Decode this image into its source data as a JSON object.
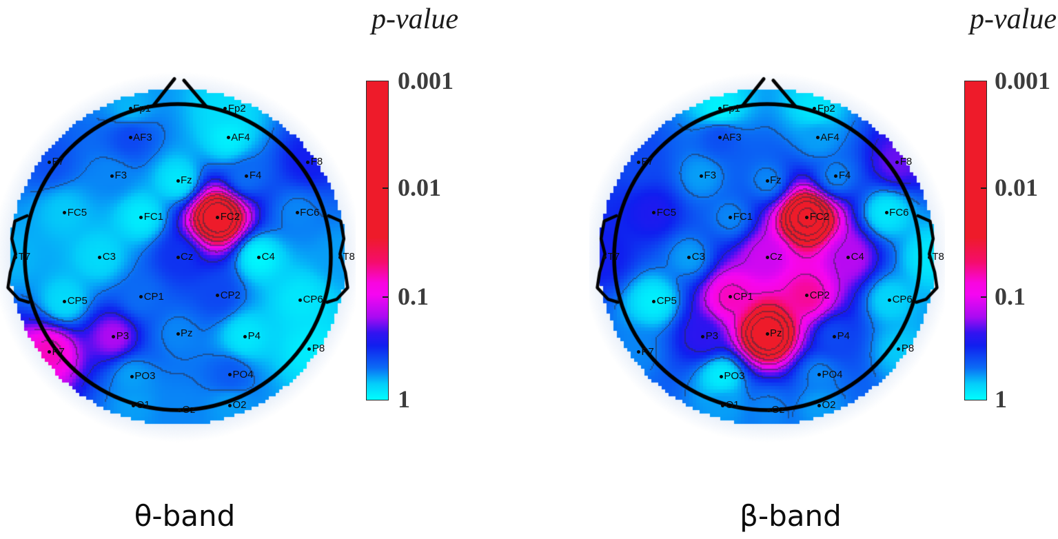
{
  "colormap": {
    "v_range": [
      0,
      3
    ],
    "note": "v = -log10(p); p=1 -> cyan, p=0.001 -> red",
    "stops": [
      {
        "v": 0.0,
        "color": "#00FEFE"
      },
      {
        "v": 0.15,
        "color": "#04CDFA"
      },
      {
        "v": 0.3,
        "color": "#0B6CF5"
      },
      {
        "v": 0.51,
        "color": "#101FEF"
      },
      {
        "v": 0.63,
        "color": "#3313F0"
      },
      {
        "v": 0.78,
        "color": "#A90BF2"
      },
      {
        "v": 0.99,
        "color": "#F506F1"
      },
      {
        "v": 1.1,
        "color": "#F806DF"
      },
      {
        "v": 1.3,
        "color": "#F50D6B"
      },
      {
        "v": 1.53,
        "color": "#EE1B2A"
      },
      {
        "v": 3.0,
        "color": "#EE1B2A"
      }
    ],
    "contour_color": "#2b2b40",
    "head_outline_color": "#000000",
    "halo_color": "#E8EFF9"
  },
  "chart_data": [
    {
      "type": "heatmap",
      "subtype": "eeg-scalp-topomap",
      "title": "θ-band",
      "colorbar": {
        "title": "p-value",
        "scale": "log10",
        "range": [
          0.001,
          1
        ],
        "tick_labels": [
          "0.001",
          "0.01",
          "0.1",
          "1"
        ]
      },
      "electrodes": [
        {
          "label": "Fp1",
          "x": -0.31,
          "y": 0.97,
          "p": 0.65
        },
        {
          "label": "Fp2",
          "x": 0.31,
          "y": 0.97,
          "p": 0.8
        },
        {
          "label": "AF3",
          "x": -0.31,
          "y": 0.78,
          "p": 0.4
        },
        {
          "label": "AF4",
          "x": 0.33,
          "y": 0.78,
          "p": 0.9
        },
        {
          "label": "F7",
          "x": -0.84,
          "y": 0.62,
          "p": 0.42
        },
        {
          "label": "F3",
          "x": -0.43,
          "y": 0.53,
          "p": 0.55
        },
        {
          "label": "Fz",
          "x": 0.0,
          "y": 0.5,
          "p": 0.85
        },
        {
          "label": "F4",
          "x": 0.45,
          "y": 0.53,
          "p": 0.5
        },
        {
          "label": "F8",
          "x": 0.85,
          "y": 0.62,
          "p": 0.3
        },
        {
          "label": "FC5",
          "x": -0.74,
          "y": 0.29,
          "p": 0.7
        },
        {
          "label": "FC1",
          "x": -0.24,
          "y": 0.26,
          "p": 0.88
        },
        {
          "label": "FC2",
          "x": 0.26,
          "y": 0.26,
          "p": 0.006
        },
        {
          "label": "FC6",
          "x": 0.78,
          "y": 0.29,
          "p": 0.55
        },
        {
          "label": "T7",
          "x": -1.06,
          "y": 0.0,
          "p": 0.65
        },
        {
          "label": "C3",
          "x": -0.51,
          "y": 0.0,
          "p": 0.78
        },
        {
          "label": "Cz",
          "x": 0.0,
          "y": 0.0,
          "p": 0.35
        },
        {
          "label": "C4",
          "x": 0.53,
          "y": 0.0,
          "p": 0.95
        },
        {
          "label": "T8",
          "x": 1.06,
          "y": 0.0,
          "p": 0.6
        },
        {
          "label": "CP5",
          "x": -0.74,
          "y": -0.29,
          "p": 0.78
        },
        {
          "label": "CP1",
          "x": -0.24,
          "y": -0.26,
          "p": 0.5
        },
        {
          "label": "CP2",
          "x": 0.26,
          "y": -0.25,
          "p": 0.4
        },
        {
          "label": "CP6",
          "x": 0.8,
          "y": -0.28,
          "p": 0.85
        },
        {
          "label": "P7",
          "x": -0.84,
          "y": -0.62,
          "p": 0.07
        },
        {
          "label": "P3",
          "x": -0.42,
          "y": -0.52,
          "p": 0.16
        },
        {
          "label": "Pz",
          "x": 0.0,
          "y": -0.5,
          "p": 0.55
        },
        {
          "label": "P4",
          "x": 0.44,
          "y": -0.52,
          "p": 0.85
        },
        {
          "label": "P8",
          "x": 0.86,
          "y": -0.6,
          "p": 0.88
        },
        {
          "label": "PO3",
          "x": -0.3,
          "y": -0.78,
          "p": 0.6
        },
        {
          "label": "PO4",
          "x": 0.34,
          "y": -0.77,
          "p": 0.45
        },
        {
          "label": "O1",
          "x": -0.29,
          "y": -0.97,
          "p": 0.6
        },
        {
          "label": "Oz",
          "x": 0.01,
          "y": -1.0,
          "p": 0.55
        },
        {
          "label": "O2",
          "x": 0.34,
          "y": -0.97,
          "p": 0.6
        }
      ]
    },
    {
      "type": "heatmap",
      "subtype": "eeg-scalp-topomap",
      "title": "β-band",
      "colorbar": {
        "title": "p-value",
        "scale": "log10",
        "range": [
          0.001,
          1
        ],
        "tick_labels": [
          "0.001",
          "0.01",
          "0.1",
          "1"
        ]
      },
      "electrodes": [
        {
          "label": "Fp1",
          "x": -0.31,
          "y": 0.97,
          "p": 0.92
        },
        {
          "label": "Fp2",
          "x": 0.31,
          "y": 0.97,
          "p": 0.85
        },
        {
          "label": "AF3",
          "x": -0.31,
          "y": 0.78,
          "p": 0.42
        },
        {
          "label": "AF4",
          "x": 0.33,
          "y": 0.78,
          "p": 0.6
        },
        {
          "label": "F7",
          "x": -0.84,
          "y": 0.62,
          "p": 0.4
        },
        {
          "label": "F3",
          "x": -0.43,
          "y": 0.53,
          "p": 0.6
        },
        {
          "label": "Fz",
          "x": 0.0,
          "y": 0.5,
          "p": 0.55
        },
        {
          "label": "F4",
          "x": 0.45,
          "y": 0.53,
          "p": 0.55
        },
        {
          "label": "F8",
          "x": 0.85,
          "y": 0.62,
          "p": 0.2
        },
        {
          "label": "FC5",
          "x": -0.74,
          "y": 0.29,
          "p": 0.28
        },
        {
          "label": "FC1",
          "x": -0.24,
          "y": 0.26,
          "p": 0.55
        },
        {
          "label": "FC2",
          "x": 0.26,
          "y": 0.26,
          "p": 0.005
        },
        {
          "label": "FC6",
          "x": 0.78,
          "y": 0.29,
          "p": 0.85
        },
        {
          "label": "T7",
          "x": -1.06,
          "y": 0.0,
          "p": 0.3
        },
        {
          "label": "C3",
          "x": -0.51,
          "y": 0.0,
          "p": 0.6
        },
        {
          "label": "Cz",
          "x": 0.0,
          "y": 0.0,
          "p": 0.13
        },
        {
          "label": "C4",
          "x": 0.53,
          "y": 0.0,
          "p": 0.15
        },
        {
          "label": "T8",
          "x": 1.06,
          "y": 0.0,
          "p": 0.85
        },
        {
          "label": "CP5",
          "x": -0.74,
          "y": -0.29,
          "p": 0.9
        },
        {
          "label": "CP1",
          "x": -0.24,
          "y": -0.26,
          "p": 0.07
        },
        {
          "label": "CP2",
          "x": 0.26,
          "y": -0.25,
          "p": 0.06
        },
        {
          "label": "CP6",
          "x": 0.8,
          "y": -0.28,
          "p": 0.75
        },
        {
          "label": "P7",
          "x": -0.84,
          "y": -0.62,
          "p": 0.55
        },
        {
          "label": "P3",
          "x": -0.42,
          "y": -0.52,
          "p": 0.25
        },
        {
          "label": "Pz",
          "x": 0.0,
          "y": -0.5,
          "p": 0.006
        },
        {
          "label": "P4",
          "x": 0.44,
          "y": -0.52,
          "p": 0.4
        },
        {
          "label": "P8",
          "x": 0.86,
          "y": -0.6,
          "p": 0.7
        },
        {
          "label": "PO3",
          "x": -0.3,
          "y": -0.78,
          "p": 0.88
        },
        {
          "label": "PO4",
          "x": 0.34,
          "y": -0.77,
          "p": 0.55
        },
        {
          "label": "O1",
          "x": -0.29,
          "y": -0.97,
          "p": 0.6
        },
        {
          "label": "Oz",
          "x": 0.01,
          "y": -1.0,
          "p": 0.55
        },
        {
          "label": "O2",
          "x": 0.34,
          "y": -0.97,
          "p": 0.6
        }
      ]
    }
  ]
}
